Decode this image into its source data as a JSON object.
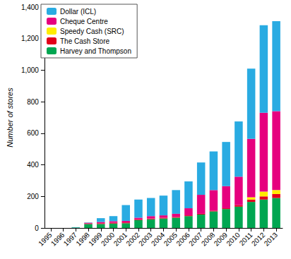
{
  "chart_data": {
    "type": "bar",
    "stacked": true,
    "grid": false,
    "legend": "top-left",
    "y_label": "Number of stores",
    "categories": [
      "1995",
      "1996",
      "1997",
      "1998",
      "1999",
      "2000",
      "2001",
      "2002",
      "2003",
      "2004",
      "2005",
      "2006",
      "2007",
      "2008",
      "2009",
      "2010",
      "2011",
      "2012",
      "2013"
    ],
    "ylim": [
      0,
      1400
    ],
    "yticks": [
      0,
      200,
      400,
      600,
      800,
      {
        "value": 1000,
        "label": "1,000"
      },
      {
        "value": 1200,
        "label": "1,200"
      },
      {
        "value": 1400,
        "label": "1,400"
      }
    ],
    "series": [
      {
        "name": "Harvey and Thompson",
        "color": "#00a651",
        "values": [
          0,
          0,
          3,
          25,
          25,
          28,
          30,
          50,
          55,
          60,
          65,
          75,
          85,
          105,
          120,
          135,
          165,
          180,
          190
        ]
      },
      {
        "name": "The Cash Store",
        "color": "#e2001a",
        "values": [
          0,
          0,
          0,
          3,
          5,
          5,
          5,
          5,
          5,
          5,
          5,
          5,
          5,
          5,
          5,
          10,
          15,
          20,
          25
        ]
      },
      {
        "name": "Speedy Cash (SRC)",
        "color": "#ffed00",
        "values": [
          0,
          0,
          0,
          0,
          0,
          0,
          0,
          0,
          0,
          0,
          0,
          0,
          0,
          0,
          0,
          0,
          15,
          30,
          25
        ]
      },
      {
        "name": "Cheque Centre",
        "color": "#e6007e",
        "values": [
          0,
          0,
          0,
          5,
          8,
          10,
          10,
          10,
          15,
          15,
          20,
          45,
          120,
          130,
          140,
          180,
          370,
          500,
          500
        ]
      },
      {
        "name": "Dollar (ICL)",
        "color": "#29abe2",
        "values": [
          0,
          0,
          2,
          2,
          24,
          32,
          100,
          115,
          115,
          125,
          150,
          170,
          205,
          245,
          280,
          350,
          445,
          555,
          570
        ]
      }
    ]
  }
}
